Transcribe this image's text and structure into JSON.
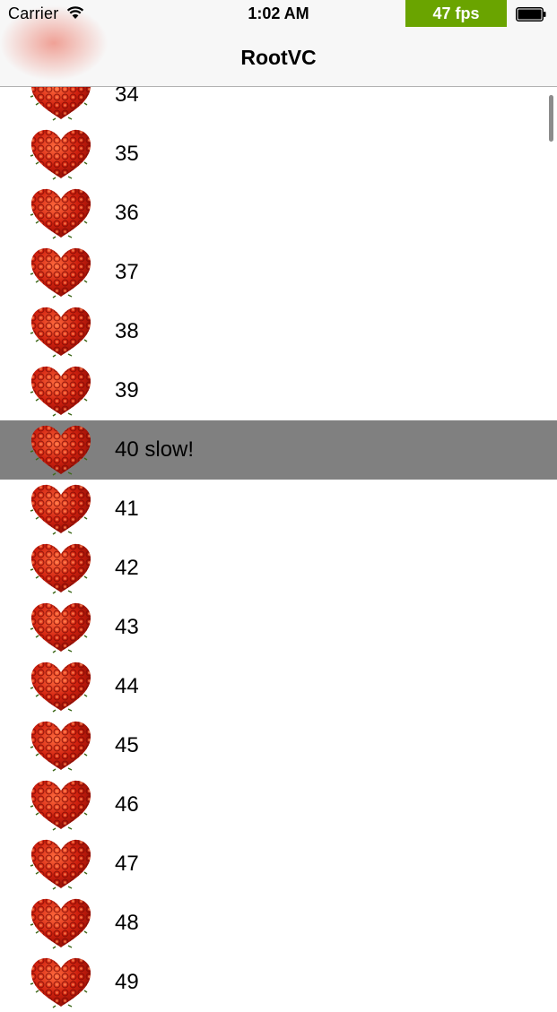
{
  "status_bar": {
    "carrier": "Carrier",
    "time": "1:02 AM",
    "fps": "47 fps",
    "fps_color": "#6aa400",
    "wifi_icon": "wifi-icon",
    "battery_icon": "battery-icon"
  },
  "nav": {
    "title": "RootVC"
  },
  "table": {
    "selected_color": "#808080",
    "row_icon": "rose-heart-icon",
    "rows": [
      {
        "label": "34",
        "selected": false
      },
      {
        "label": "35",
        "selected": false
      },
      {
        "label": "36",
        "selected": false
      },
      {
        "label": "37",
        "selected": false
      },
      {
        "label": "38",
        "selected": false
      },
      {
        "label": "39",
        "selected": false
      },
      {
        "label": "40 slow!",
        "selected": true
      },
      {
        "label": "41",
        "selected": false
      },
      {
        "label": "42",
        "selected": false
      },
      {
        "label": "43",
        "selected": false
      },
      {
        "label": "44",
        "selected": false
      },
      {
        "label": "45",
        "selected": false
      },
      {
        "label": "46",
        "selected": false
      },
      {
        "label": "47",
        "selected": false
      },
      {
        "label": "48",
        "selected": false
      },
      {
        "label": "49",
        "selected": false
      }
    ]
  }
}
